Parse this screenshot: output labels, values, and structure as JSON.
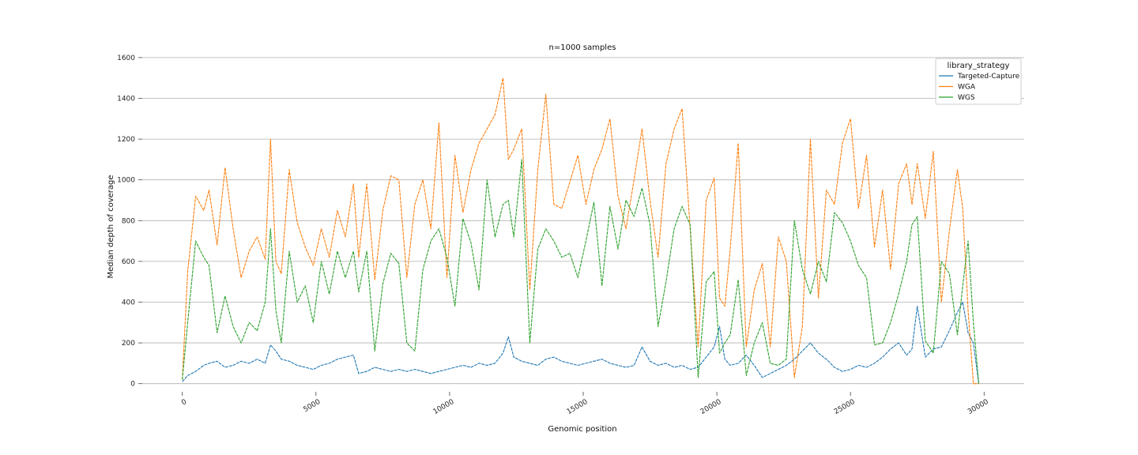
{
  "chart_data": {
    "type": "line",
    "title": "n=1000 samples",
    "xlabel": "Genomic position",
    "ylabel": "Median depth of coverage",
    "xlim": [
      -1500,
      31500
    ],
    "ylim": [
      -40,
      1650
    ],
    "x_ticks": [
      0,
      5000,
      10000,
      15000,
      20000,
      25000,
      30000
    ],
    "y_ticks": [
      0,
      200,
      400,
      600,
      800,
      1000,
      1200,
      1400,
      1600
    ],
    "grid": "horizontal",
    "legend": {
      "title": "library_strategy",
      "placement": "top-right"
    },
    "series": [
      {
        "name": "Targeted-Capture",
        "color": "#1f77b4",
        "x": [
          0,
          200,
          500,
          800,
          1000,
          1300,
          1600,
          1900,
          2200,
          2500,
          2800,
          3100,
          3300,
          3500,
          3700,
          4000,
          4300,
          4600,
          4900,
          5200,
          5500,
          5800,
          6100,
          6400,
          6600,
          6900,
          7200,
          7500,
          7800,
          8100,
          8400,
          8700,
          9000,
          9300,
          9600,
          9900,
          10200,
          10500,
          10800,
          11100,
          11400,
          11700,
          12000,
          12200,
          12400,
          12700,
          13000,
          13300,
          13600,
          13900,
          14200,
          14500,
          14800,
          15100,
          15400,
          15700,
          16000,
          16300,
          16600,
          16900,
          17200,
          17500,
          17800,
          18100,
          18400,
          18700,
          19000,
          19300,
          19600,
          19900,
          20100,
          20300,
          20500,
          20800,
          21100,
          21400,
          21700,
          22000,
          22300,
          22600,
          22900,
          23200,
          23500,
          23800,
          24100,
          24400,
          24700,
          25000,
          25300,
          25600,
          25900,
          26200,
          26500,
          26800,
          27100,
          27300,
          27500,
          27800,
          28100,
          28400,
          28700,
          29000,
          29200,
          29400,
          29600,
          29800
        ],
        "values": [
          10,
          40,
          60,
          90,
          100,
          110,
          80,
          90,
          110,
          100,
          120,
          100,
          190,
          160,
          120,
          110,
          90,
          80,
          70,
          90,
          100,
          120,
          130,
          140,
          50,
          60,
          80,
          70,
          60,
          70,
          60,
          70,
          60,
          50,
          60,
          70,
          80,
          90,
          80,
          100,
          90,
          100,
          150,
          230,
          130,
          110,
          100,
          90,
          120,
          130,
          110,
          100,
          90,
          100,
          110,
          120,
          100,
          90,
          80,
          90,
          180,
          110,
          90,
          100,
          80,
          90,
          70,
          80,
          130,
          180,
          280,
          120,
          90,
          100,
          140,
          90,
          30,
          50,
          70,
          90,
          120,
          160,
          200,
          150,
          120,
          80,
          60,
          70,
          90,
          80,
          100,
          130,
          170,
          200,
          140,
          170,
          380,
          130,
          170,
          180,
          260,
          350,
          400,
          250,
          200,
          0
        ]
      },
      {
        "name": "WGA",
        "color": "#ff7f0e",
        "x": [
          0,
          200,
          500,
          800,
          1000,
          1300,
          1600,
          1900,
          2200,
          2500,
          2800,
          3100,
          3300,
          3500,
          3700,
          4000,
          4300,
          4600,
          4900,
          5200,
          5500,
          5800,
          6100,
          6400,
          6600,
          6900,
          7200,
          7500,
          7800,
          8100,
          8400,
          8700,
          9000,
          9300,
          9600,
          9900,
          10200,
          10500,
          10800,
          11100,
          11400,
          11700,
          12000,
          12200,
          12400,
          12700,
          13000,
          13300,
          13600,
          13900,
          14200,
          14500,
          14800,
          15100,
          15400,
          15700,
          16000,
          16300,
          16600,
          16900,
          17200,
          17500,
          17800,
          18100,
          18400,
          18700,
          19000,
          19300,
          19600,
          19900,
          20100,
          20300,
          20500,
          20800,
          21100,
          21400,
          21700,
          22000,
          22300,
          22600,
          22900,
          23200,
          23500,
          23800,
          24100,
          24400,
          24700,
          25000,
          25300,
          25600,
          25900,
          26200,
          26500,
          26800,
          27100,
          27300,
          27500,
          27800,
          28100,
          28400,
          28700,
          29000,
          29200,
          29400,
          29600,
          29800
        ],
        "values": [
          20,
          550,
          920,
          850,
          950,
          680,
          1060,
          760,
          520,
          650,
          720,
          610,
          1200,
          600,
          540,
          1050,
          790,
          670,
          580,
          760,
          620,
          850,
          720,
          980,
          620,
          980,
          510,
          850,
          1020,
          1000,
          520,
          880,
          1000,
          760,
          1280,
          520,
          1120,
          840,
          1050,
          1180,
          1250,
          1320,
          1500,
          1100,
          1150,
          1250,
          460,
          1050,
          1420,
          880,
          860,
          990,
          1120,
          880,
          1050,
          1150,
          1300,
          920,
          760,
          1000,
          1250,
          900,
          620,
          1080,
          1250,
          1350,
          760,
          180,
          900,
          1010,
          420,
          380,
          660,
          1180,
          180,
          460,
          590,
          180,
          720,
          600,
          30,
          280,
          1200,
          420,
          950,
          880,
          1180,
          1300,
          860,
          1120,
          670,
          950,
          560,
          980,
          1080,
          880,
          1080,
          810,
          1140,
          400,
          750,
          1050,
          860,
          360,
          0,
          0
        ]
      },
      {
        "name": "WGS",
        "color": "#2ca02c",
        "x": [
          0,
          200,
          500,
          800,
          1000,
          1300,
          1600,
          1900,
          2200,
          2500,
          2800,
          3100,
          3300,
          3500,
          3700,
          4000,
          4300,
          4600,
          4900,
          5200,
          5500,
          5800,
          6100,
          6400,
          6600,
          6900,
          7200,
          7500,
          7800,
          8100,
          8400,
          8700,
          9000,
          9300,
          9600,
          9900,
          10200,
          10500,
          10800,
          11100,
          11400,
          11700,
          12000,
          12200,
          12400,
          12700,
          13000,
          13300,
          13600,
          13900,
          14200,
          14500,
          14800,
          15100,
          15400,
          15700,
          16000,
          16300,
          16600,
          16900,
          17200,
          17500,
          17800,
          18100,
          18400,
          18700,
          19000,
          19300,
          19600,
          19900,
          20100,
          20300,
          20500,
          20800,
          21100,
          21400,
          21700,
          22000,
          22300,
          22600,
          22900,
          23200,
          23500,
          23800,
          24100,
          24400,
          24700,
          25000,
          25300,
          25600,
          25900,
          26200,
          26500,
          26800,
          27100,
          27300,
          27500,
          27800,
          28100,
          28400,
          28700,
          29000,
          29200,
          29400,
          29600,
          29800
        ],
        "values": [
          20,
          300,
          700,
          620,
          580,
          250,
          430,
          280,
          200,
          300,
          260,
          400,
          760,
          360,
          200,
          650,
          400,
          480,
          300,
          600,
          440,
          650,
          520,
          650,
          450,
          650,
          160,
          490,
          640,
          590,
          200,
          160,
          560,
          700,
          760,
          620,
          380,
          810,
          690,
          460,
          1000,
          720,
          880,
          900,
          720,
          1100,
          200,
          660,
          760,
          700,
          620,
          640,
          520,
          700,
          890,
          480,
          870,
          660,
          900,
          820,
          960,
          780,
          280,
          500,
          760,
          870,
          780,
          30,
          500,
          550,
          150,
          200,
          240,
          510,
          40,
          200,
          300,
          100,
          90,
          120,
          800,
          560,
          440,
          600,
          500,
          840,
          790,
          700,
          580,
          520,
          190,
          200,
          300,
          440,
          600,
          780,
          820,
          210,
          150,
          600,
          540,
          240,
          480,
          700,
          300,
          0
        ]
      }
    ]
  }
}
